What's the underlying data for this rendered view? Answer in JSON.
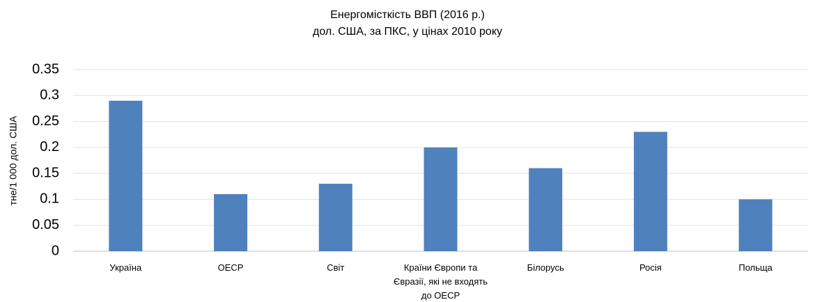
{
  "chart_data": {
    "type": "bar",
    "title": "Енергомісткість ВВП (2016 р.)",
    "subtitle": "дол. США, за ПКС, у цінах 2010 року",
    "y_label": "тне/1 000 дол. США",
    "categories": [
      "Україна",
      "ОЕСР",
      "Світ",
      "Країни Європи та Євразії, які не входять до ОЕСР",
      "Білорусь",
      "Росія",
      "Польща"
    ],
    "values": [
      0.29,
      0.11,
      0.13,
      0.2,
      0.16,
      0.23,
      0.1
    ],
    "color": "#4f81bd",
    "ylim": [
      0,
      0.35
    ],
    "yticks": [
      0,
      0.05,
      0.1,
      0.15,
      0.2,
      0.25,
      0.3,
      0.35
    ],
    "grid": true
  }
}
